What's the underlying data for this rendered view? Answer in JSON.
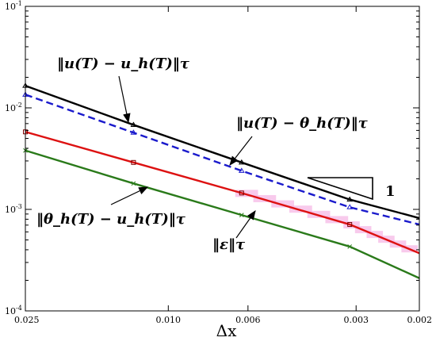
{
  "chart_data": {
    "type": "line",
    "title": "",
    "xlabel": "Δx",
    "ylabel": "",
    "x_scale": "log",
    "x_reversed": true,
    "y_scale": "log",
    "xlim": [
      0.025,
      0.002
    ],
    "ylim": [
      0.0001,
      0.1
    ],
    "x_ticks": [
      0.025,
      0.01,
      0.006,
      0.003,
      0.002
    ],
    "x_tick_labels": [
      "0.025",
      "0.010",
      "0.006",
      "0.003",
      "0.002"
    ],
    "y_ticks": [
      0.0001,
      0.001,
      0.01,
      0.1
    ],
    "y_tick_labels": [
      "10^-4",
      "10^-3",
      "10^-2",
      "10^-1"
    ],
    "series": [
      {
        "name": "‖u(T) − u_h(T)‖_τ",
        "color": "#000000",
        "dash": "solid",
        "marker": "triangle",
        "x": [
          0.025,
          0.0125,
          0.00625,
          0.003125,
          0.002
        ],
        "values": [
          0.0165,
          0.0068,
          0.0029,
          0.00125,
          0.00082
        ]
      },
      {
        "name": "‖u(T) − θ_h(T)‖_τ",
        "color": "#1a1acc",
        "dash": "dashed",
        "marker": "triangle",
        "x": [
          0.025,
          0.0125,
          0.00625,
          0.003125,
          0.002
        ],
        "values": [
          0.0135,
          0.0057,
          0.0024,
          0.00105,
          0.00071
        ]
      },
      {
        "name": "‖ε‖_τ",
        "color": "#dd1111",
        "dash": "solid",
        "marker": "square",
        "x": [
          0.025,
          0.0125,
          0.00625,
          0.003125,
          0.002
        ],
        "values": [
          0.0058,
          0.0029,
          0.00145,
          0.00071,
          0.00037
        ]
      },
      {
        "name": "‖θ_h(T) − u_h(T)‖_τ",
        "color": "#2a7a1a",
        "dash": "solid",
        "marker": "x",
        "x": [
          0.025,
          0.0125,
          0.00625,
          0.003125,
          0.002
        ],
        "values": [
          0.0038,
          0.0018,
          0.00088,
          0.00043,
          0.00021
        ]
      }
    ],
    "annotations": [
      {
        "text": "‖u(T) − u_h(T)‖τ",
        "target_series": 0
      },
      {
        "text": "‖u(T) − θ_h(T)‖τ",
        "target_series": 1
      },
      {
        "text": "‖θ_h(T) − u_h(T)‖τ",
        "target_series": 3
      },
      {
        "text": "‖ε‖τ",
        "target_series": 2
      }
    ],
    "slope_triangle": {
      "label": "1",
      "slope": 1
    },
    "grid": false,
    "legend": "none"
  }
}
